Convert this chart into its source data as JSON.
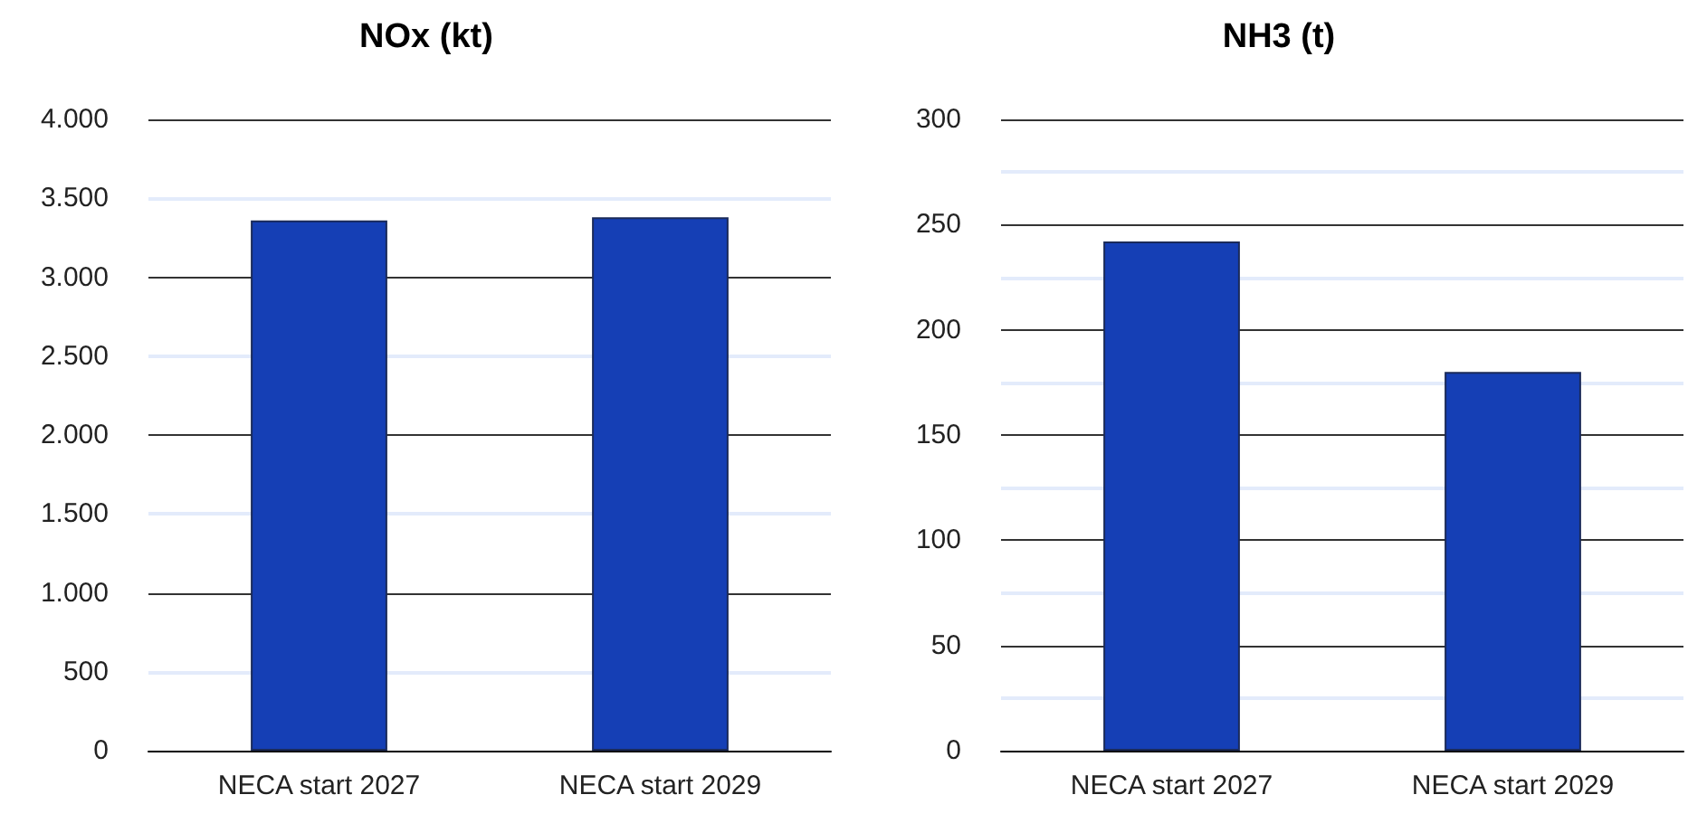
{
  "chart_data": [
    {
      "type": "bar",
      "title": "NOx (kt)",
      "categories": [
        "NECA start 2027",
        "NECA start 2029"
      ],
      "values": [
        3360,
        3380
      ],
      "color": "#153fb5",
      "ylim": [
        0,
        4000
      ],
      "yticks": [
        0,
        {
          "value": 500,
          "label": "500"
        },
        {
          "value": 1000,
          "label": "1.000"
        },
        {
          "value": 1500,
          "label": "1.500"
        },
        {
          "value": 2000,
          "label": "2.000"
        },
        {
          "value": 2500,
          "label": "2.500"
        },
        {
          "value": 3000,
          "label": "3.000"
        },
        {
          "value": 3500,
          "label": "3.500"
        },
        {
          "value": 4000,
          "label": "4.000"
        }
      ],
      "grid": "y"
    },
    {
      "type": "bar",
      "title": "NH3 (t)",
      "categories": [
        "NECA start 2027",
        "NECA start 2029"
      ],
      "values": [
        242,
        180
      ],
      "color": "#153fb5",
      "ylim": [
        0,
        300
      ],
      "yticks": [
        0,
        50,
        100,
        150,
        200,
        250,
        300
      ],
      "grid": "y"
    }
  ]
}
